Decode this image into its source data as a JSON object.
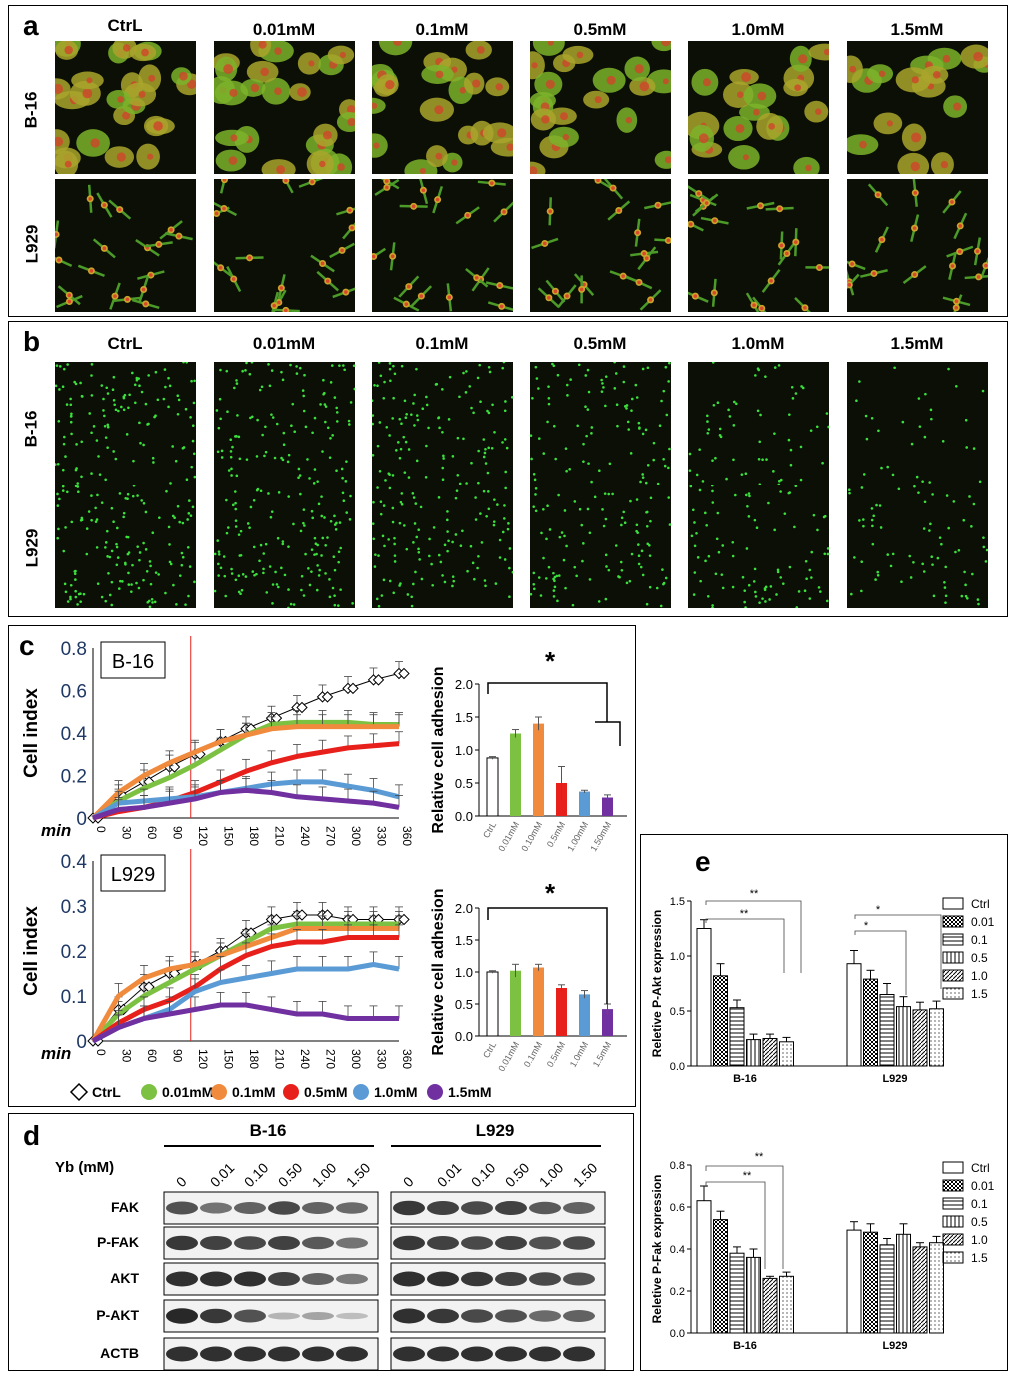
{
  "panel_a": {
    "label": "a",
    "columns": [
      "CtrL",
      "0.01mM",
      "0.1mM",
      "0.5mM",
      "1.0mM",
      "1.5mM"
    ],
    "rows": [
      "B-16",
      "L929"
    ]
  },
  "panel_b": {
    "label": "b",
    "columns": [
      "CtrL",
      "0.01mM",
      "0.1mM",
      "0.5mM",
      "1.0mM",
      "1.5mM"
    ],
    "rows": [
      "B-16",
      "L929"
    ]
  },
  "panel_c": {
    "label": "c",
    "ylabel": "Cell index",
    "xunit": "min",
    "bar_ylabel": "Relative  cell adhesion",
    "star": "*",
    "legend": [
      "CtrL",
      "0.01mM",
      "0.1mM",
      "0.5mM",
      "1.0mM",
      "1.5mM"
    ],
    "colors": [
      "#ffffff",
      "#7dc142",
      "#f08a3c",
      "#e8201c",
      "#5b9bd5",
      "#7030a0"
    ]
  },
  "panel_d": {
    "label": "d",
    "yb_label": "Yb (mM)",
    "groups": [
      "B-16",
      "L929"
    ],
    "doses": [
      "0",
      "0.01",
      "0.10",
      "0.50",
      "1.00",
      "1.50"
    ],
    "proteins": [
      "FAK",
      "P-FAK",
      "AKT",
      "P-AKT",
      "ACTB"
    ]
  },
  "panel_e": {
    "label": "e",
    "legend": [
      "Ctrl",
      "0.01",
      "0.1",
      "0.5",
      "1.0",
      "1.5"
    ],
    "sig": "**",
    "sig_single": "*"
  },
  "chart_data": [
    {
      "type": "line",
      "title": "B-16",
      "xlabel": "min",
      "ylabel": "Cell index",
      "x": [
        0,
        30,
        60,
        90,
        120,
        150,
        180,
        210,
        240,
        270,
        300,
        330,
        360
      ],
      "xticks": [
        "0",
        "30",
        "60",
        "90",
        "120",
        "150",
        "180",
        "210",
        "240",
        "270",
        "300",
        "330",
        "360"
      ],
      "yticks": [
        "0",
        "0.2",
        "0.4",
        "0.6",
        "0.8"
      ],
      "ylim": [
        0,
        0.8
      ],
      "vline_x": 115,
      "series": [
        {
          "name": "CtrL",
          "values": [
            0,
            0.1,
            0.17,
            0.24,
            0.3,
            0.36,
            0.42,
            0.47,
            0.52,
            0.57,
            0.61,
            0.65,
            0.68
          ]
        },
        {
          "name": "0.01mM",
          "values": [
            0,
            0.08,
            0.14,
            0.19,
            0.25,
            0.32,
            0.39,
            0.44,
            0.45,
            0.45,
            0.45,
            0.44,
            0.44
          ]
        },
        {
          "name": "0.1mM",
          "values": [
            0,
            0.12,
            0.2,
            0.26,
            0.31,
            0.36,
            0.39,
            0.42,
            0.43,
            0.43,
            0.43,
            0.43,
            0.43
          ]
        },
        {
          "name": "0.5mM",
          "values": [
            0,
            0.03,
            0.05,
            0.08,
            0.12,
            0.17,
            0.22,
            0.26,
            0.29,
            0.31,
            0.33,
            0.34,
            0.35
          ]
        },
        {
          "name": "1.0mM",
          "values": [
            0,
            0.07,
            0.08,
            0.09,
            0.1,
            0.12,
            0.14,
            0.16,
            0.17,
            0.17,
            0.15,
            0.13,
            0.1
          ]
        },
        {
          "name": "1.5mM",
          "values": [
            0,
            0.04,
            0.05,
            0.07,
            0.09,
            0.12,
            0.13,
            0.12,
            0.1,
            0.09,
            0.08,
            0.07,
            0.05
          ]
        }
      ]
    },
    {
      "type": "bar",
      "ylabel": "Relative  cell adhesion",
      "categories": [
        "CtrL",
        "0.01mM",
        "0.10mM",
        "0.5mM",
        "1.00mM",
        "1.50mM"
      ],
      "values": [
        0.88,
        1.25,
        1.4,
        0.5,
        0.37,
        0.28
      ],
      "errors": [
        0.02,
        0.06,
        0.1,
        0.25,
        0.02,
        0.04
      ],
      "yticks": [
        "0.0",
        "0.5",
        "1.0",
        "1.5",
        "2.0"
      ],
      "ylim": [
        0,
        2.0
      ]
    },
    {
      "type": "line",
      "title": "L929",
      "xlabel": "min",
      "ylabel": "Cell index",
      "x": [
        0,
        30,
        60,
        90,
        120,
        150,
        180,
        210,
        240,
        270,
        300,
        330,
        360
      ],
      "xticks": [
        "0",
        "30",
        "60",
        "90",
        "120",
        "150",
        "180",
        "210",
        "240",
        "270",
        "300",
        "330",
        "360"
      ],
      "yticks": [
        "0",
        "0.1",
        "0.2",
        "0.3",
        "0.4"
      ],
      "ylim": [
        0,
        0.4
      ],
      "vline_x": 115,
      "series": [
        {
          "name": "CtrL",
          "values": [
            0,
            0.07,
            0.12,
            0.15,
            0.17,
            0.2,
            0.24,
            0.27,
            0.28,
            0.28,
            0.27,
            0.27,
            0.27
          ]
        },
        {
          "name": "0.01mM",
          "values": [
            0,
            0.06,
            0.1,
            0.13,
            0.16,
            0.19,
            0.22,
            0.25,
            0.26,
            0.26,
            0.26,
            0.26,
            0.26
          ]
        },
        {
          "name": "0.1mM",
          "values": [
            0,
            0.1,
            0.14,
            0.16,
            0.17,
            0.19,
            0.21,
            0.23,
            0.25,
            0.25,
            0.25,
            0.25,
            0.25
          ]
        },
        {
          "name": "0.5mM",
          "values": [
            0,
            0.04,
            0.07,
            0.09,
            0.12,
            0.16,
            0.19,
            0.21,
            0.22,
            0.22,
            0.23,
            0.23,
            0.23
          ]
        },
        {
          "name": "1.0mM",
          "values": [
            0,
            0.03,
            0.05,
            0.07,
            0.11,
            0.13,
            0.14,
            0.15,
            0.16,
            0.16,
            0.16,
            0.17,
            0.16
          ]
        },
        {
          "name": "1.5mM",
          "values": [
            0,
            0.03,
            0.05,
            0.06,
            0.07,
            0.08,
            0.08,
            0.07,
            0.06,
            0.06,
            0.05,
            0.05,
            0.05
          ]
        }
      ]
    },
    {
      "type": "bar",
      "ylabel": "Relative  cell adhesion",
      "categories": [
        "CtrL",
        "0.01mM",
        "0.1mM",
        "0.5mM",
        "1.0mM",
        "1.5mM"
      ],
      "values": [
        1.0,
        1.02,
        1.07,
        0.75,
        0.65,
        0.42
      ],
      "errors": [
        0.02,
        0.1,
        0.05,
        0.05,
        0.06,
        0.08
      ],
      "yticks": [
        "0.0",
        "0.5",
        "1.0",
        "1.5",
        "2.0"
      ],
      "ylim": [
        0,
        2.0
      ]
    },
    {
      "type": "bar",
      "ylabel": "Reletive P-Akt expression",
      "categories": [
        "B-16",
        "L929"
      ],
      "series": [
        {
          "name": "Ctrl",
          "values": [
            1.25,
            0.93
          ],
          "errors": [
            0.08,
            0.12
          ]
        },
        {
          "name": "0.01",
          "values": [
            0.82,
            0.79
          ],
          "errors": [
            0.11,
            0.08
          ]
        },
        {
          "name": "0.1",
          "values": [
            0.53,
            0.65
          ],
          "errors": [
            0.07,
            0.1
          ]
        },
        {
          "name": "0.5",
          "values": [
            0.24,
            0.54
          ],
          "errors": [
            0.05,
            0.09
          ]
        },
        {
          "name": "1.0",
          "values": [
            0.25,
            0.51
          ],
          "errors": [
            0.04,
            0.07
          ]
        },
        {
          "name": "1.5",
          "values": [
            0.22,
            0.52
          ],
          "errors": [
            0.04,
            0.07
          ]
        }
      ],
      "yticks": [
        "0.0",
        "0.5",
        "1.0",
        "1.5"
      ],
      "ylim": [
        0,
        1.5
      ]
    },
    {
      "type": "bar",
      "ylabel": "Reletive P-Fak expression",
      "categories": [
        "B-16",
        "L929"
      ],
      "series": [
        {
          "name": "Ctrl",
          "values": [
            0.63,
            0.49
          ],
          "errors": [
            0.07,
            0.04
          ]
        },
        {
          "name": "0.01",
          "values": [
            0.54,
            0.48
          ],
          "errors": [
            0.04,
            0.04
          ]
        },
        {
          "name": "0.1",
          "values": [
            0.38,
            0.42
          ],
          "errors": [
            0.03,
            0.03
          ]
        },
        {
          "name": "0.5",
          "values": [
            0.36,
            0.47
          ],
          "errors": [
            0.04,
            0.05
          ]
        },
        {
          "name": "1.0",
          "values": [
            0.26,
            0.41
          ],
          "errors": [
            0.01,
            0.02
          ]
        },
        {
          "name": "1.5",
          "values": [
            0.27,
            0.43
          ],
          "errors": [
            0.02,
            0.03
          ]
        }
      ],
      "yticks": [
        "0.0",
        "0.2",
        "0.4",
        "0.6",
        "0.8"
      ],
      "ylim": [
        0,
        0.8
      ]
    }
  ]
}
